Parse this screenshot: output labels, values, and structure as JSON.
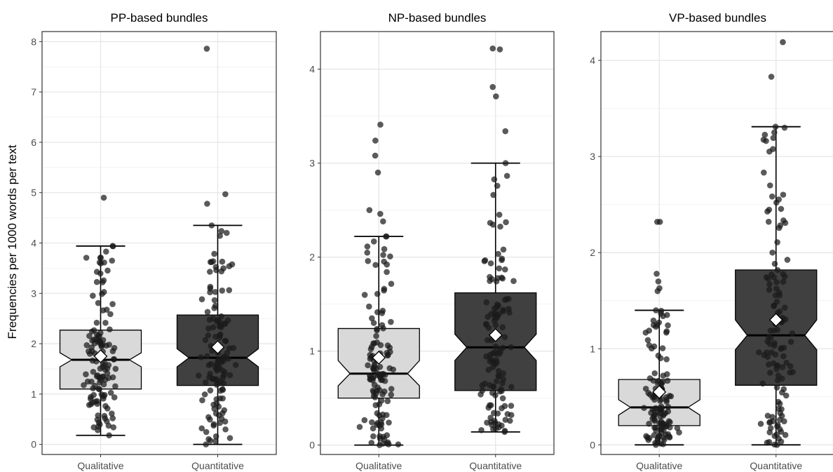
{
  "ylabel": "Frequencies per 1000 words per text",
  "colors": {
    "qualitative_fill": "#d9d9d9",
    "quantitative_fill": "#404040",
    "point": "#1a1a1a",
    "grid_major": "#e6e6e6",
    "grid_minor": "#f2f2f2",
    "mean_marker": "#ffffff"
  },
  "chart_data": [
    {
      "type": "boxplot",
      "title": "PP-based bundles",
      "categories": [
        "Qualitative",
        "Quantitative"
      ],
      "y_ticks": [
        0,
        1,
        2,
        3,
        4,
        5,
        6,
        7,
        8
      ],
      "ylim": [
        -0.2,
        8.2
      ],
      "grid": true,
      "boxes": [
        {
          "category": "Qualitative",
          "whisker_low": 0.18,
          "q1": 1.1,
          "median": 1.68,
          "q3": 2.27,
          "whisker_high": 3.94,
          "notch_low": 1.54,
          "notch_high": 1.82,
          "mean": 1.75
        },
        {
          "category": "Quantitative",
          "whisker_low": 0.0,
          "q1": 1.17,
          "median": 1.72,
          "q3": 2.57,
          "whisker_high": 4.35,
          "notch_low": 1.54,
          "notch_high": 1.9,
          "mean": 1.93
        }
      ],
      "outliers": [
        {
          "category": "Qualitative",
          "values": [
            4.9
          ]
        },
        {
          "category": "Quantitative",
          "values": [
            7.86,
            4.97,
            4.78
          ]
        }
      ]
    },
    {
      "type": "boxplot",
      "title": "NP-based bundles",
      "categories": [
        "Qualitative",
        "Quantitative"
      ],
      "y_ticks": [
        0,
        1,
        2,
        3,
        4
      ],
      "ylim": [
        -0.1,
        4.4
      ],
      "grid": true,
      "boxes": [
        {
          "category": "Qualitative",
          "whisker_low": 0.0,
          "q1": 0.5,
          "median": 0.76,
          "q3": 1.24,
          "whisker_high": 2.22,
          "notch_low": 0.63,
          "notch_high": 0.9,
          "mean": 0.93
        },
        {
          "category": "Quantitative",
          "whisker_low": 0.14,
          "q1": 0.58,
          "median": 1.04,
          "q3": 1.62,
          "whisker_high": 3.0,
          "notch_low": 0.9,
          "notch_high": 1.18,
          "mean": 1.17
        }
      ],
      "outliers": [
        {
          "category": "Qualitative",
          "values": [
            3.41,
            3.24,
            3.08,
            2.9,
            2.5,
            2.46,
            2.38
          ]
        },
        {
          "category": "Quantitative",
          "values": [
            4.22,
            4.21,
            3.81,
            3.71,
            3.34
          ]
        }
      ]
    },
    {
      "type": "boxplot",
      "title": "VP-based bundles",
      "categories": [
        "Qualitative",
        "Quantitative"
      ],
      "y_ticks": [
        0,
        1,
        2,
        3,
        4
      ],
      "ylim": [
        -0.1,
        4.3
      ],
      "grid": true,
      "boxes": [
        {
          "category": "Qualitative",
          "whisker_low": 0.0,
          "q1": 0.2,
          "median": 0.39,
          "q3": 0.68,
          "whisker_high": 1.4,
          "notch_low": 0.31,
          "notch_high": 0.47,
          "mean": 0.55
        },
        {
          "category": "Quantitative",
          "whisker_low": 0.0,
          "q1": 0.62,
          "median": 1.14,
          "q3": 1.82,
          "whisker_high": 3.31,
          "notch_low": 0.99,
          "notch_high": 1.3,
          "mean": 1.3
        }
      ],
      "outliers": [
        {
          "category": "Qualitative",
          "values": [
            2.32,
            2.32,
            1.78,
            1.7,
            1.63,
            1.6
          ]
        },
        {
          "category": "Quantitative",
          "values": [
            4.19,
            3.83
          ]
        }
      ]
    }
  ]
}
